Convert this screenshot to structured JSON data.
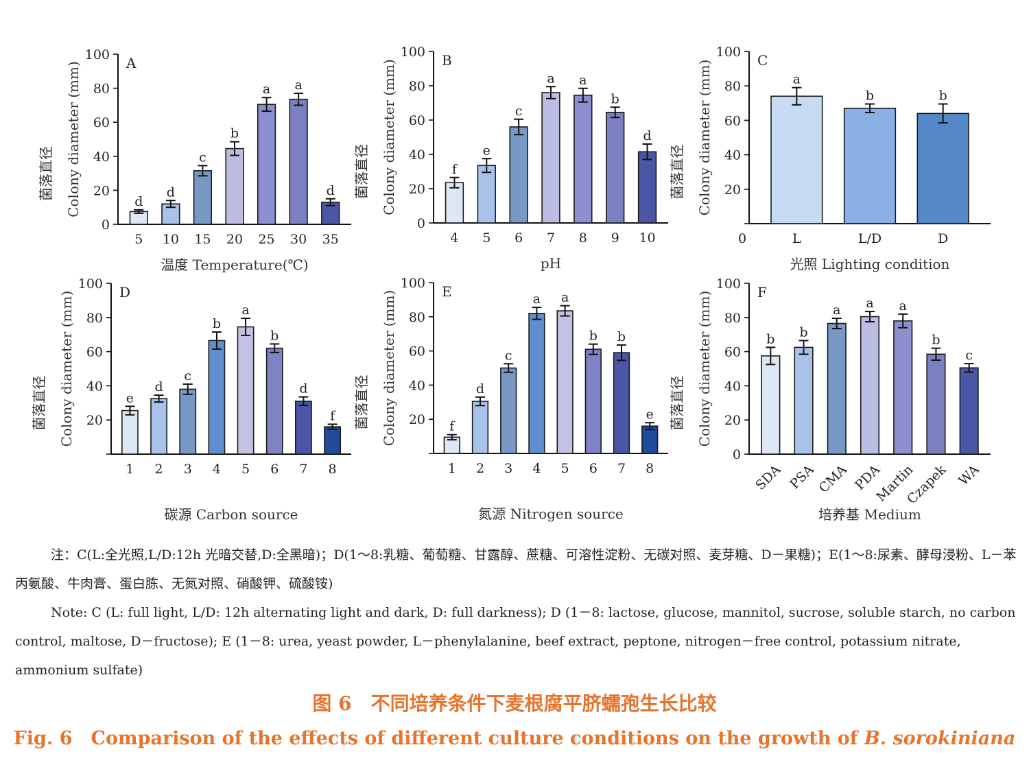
{
  "chart_data": [
    {
      "panel": "A",
      "type": "bar",
      "categories": [
        "5",
        "10",
        "15",
        "20",
        "25",
        "30",
        "35"
      ],
      "values": [
        7.5,
        12,
        31.5,
        44.5,
        70.5,
        73.5,
        13
      ],
      "errors": [
        1,
        2,
        3,
        4,
        4,
        3.5,
        2
      ],
      "letters": [
        "d",
        "d",
        "c",
        "b",
        "a",
        "a",
        "d"
      ],
      "xlabel": "温度 Temperature(℃)",
      "ylabel_zh": "菌落直径",
      "ylabel_en": "Colony diameter (mm)",
      "ylim": [
        0,
        100
      ],
      "yticks": [
        "0",
        "20",
        "40",
        "60",
        "80",
        "100"
      ],
      "x_zero_label": ""
    },
    {
      "panel": "B",
      "type": "bar",
      "categories": [
        "4",
        "5",
        "6",
        "7",
        "8",
        "9",
        "10"
      ],
      "values": [
        23.5,
        33.5,
        56,
        76,
        74.5,
        64.5,
        41.5
      ],
      "errors": [
        3,
        4,
        4.5,
        3.5,
        4,
        3,
        4.5
      ],
      "letters": [
        "f",
        "e",
        "c",
        "a",
        "a",
        "b",
        "d"
      ],
      "xlabel": "pH",
      "ylabel_zh": "菌落直径",
      "ylabel_en": "Colony diameter (mm)",
      "ylim": [
        0,
        100
      ],
      "yticks": [
        "0",
        "20",
        "40",
        "60",
        "80",
        "100"
      ],
      "x_zero_label": ""
    },
    {
      "panel": "C",
      "type": "bar",
      "categories": [
        "L",
        "L/D",
        "D"
      ],
      "values": [
        74,
        67,
        64
      ],
      "errors": [
        5,
        2.5,
        5.5
      ],
      "letters": [
        "a",
        "b",
        "b"
      ],
      "xlabel": "光照 Lighting condition",
      "ylabel_zh": "菌落直径",
      "ylabel_en": "Colony diameter (mm)",
      "ylim": [
        0,
        100
      ],
      "yticks": [
        "",
        "20",
        "40",
        "60",
        "80",
        "100"
      ],
      "x_zero_label": "0"
    },
    {
      "panel": "D",
      "type": "bar",
      "categories": [
        "1",
        "2",
        "3",
        "4",
        "5",
        "6",
        "7",
        "8"
      ],
      "values": [
        25.5,
        32.5,
        38,
        66.5,
        74.5,
        62,
        31,
        16
      ],
      "errors": [
        2.5,
        2,
        3,
        5,
        5,
        2.5,
        2.5,
        1.5
      ],
      "letters": [
        "e",
        "d",
        "c",
        "b",
        "a",
        "b",
        "d",
        "f"
      ],
      "xlabel": "碳源 Carbon source",
      "ylabel_zh": "菌落直径",
      "ylabel_en": "Colony diameter (mm)",
      "ylim": [
        0,
        100
      ],
      "yticks": [
        "",
        "20",
        "40",
        "60",
        "80",
        "100"
      ],
      "x_zero_label": ""
    },
    {
      "panel": "E",
      "type": "bar",
      "categories": [
        "1",
        "2",
        "3",
        "4",
        "5",
        "6",
        "7",
        "8"
      ],
      "values": [
        9.5,
        30.5,
        50,
        82,
        83.5,
        61,
        59,
        16
      ],
      "errors": [
        1.5,
        2.5,
        2.5,
        3.5,
        3,
        3,
        4.5,
        2
      ],
      "letters": [
        "f",
        "d",
        "c",
        "a",
        "a",
        "b",
        "b",
        "e"
      ],
      "xlabel": "氮源 Nitrogen source",
      "ylabel_zh": "菌落直径",
      "ylabel_en": "Colony diameter (mm)",
      "ylim": [
        0,
        100
      ],
      "yticks": [
        "",
        "20",
        "40",
        "60",
        "80",
        "100"
      ],
      "x_zero_label": ""
    },
    {
      "panel": "F",
      "type": "bar",
      "categories": [
        "SDA",
        "PSA",
        "CMA",
        "PDA",
        "Martin",
        "Czapek",
        "WA"
      ],
      "values": [
        57.5,
        62.5,
        76.5,
        80.5,
        78,
        58.5,
        50.5
      ],
      "errors": [
        5,
        4,
        3,
        3,
        4,
        3.5,
        2.5
      ],
      "letters": [
        "b",
        "b",
        "a",
        "a",
        "a",
        "b",
        "c"
      ],
      "xlabel": "培养基 Medium",
      "ylabel_zh": "菌落直径",
      "ylabel_en": "Colony diameter (mm)",
      "ylim": [
        0,
        100
      ],
      "yticks": [
        "0",
        "20",
        "40",
        "60",
        "80",
        "100"
      ],
      "x_zero_label": "",
      "rotated_ticks": true
    }
  ],
  "colors": {
    "seven": [
      "#dde7f6",
      "#a9c2ea",
      "#7898c6",
      "#bbbde2",
      "#8d8fcf",
      "#7c80c0",
      "#4b56a7"
    ],
    "three": [
      "#c7dcf3",
      "#8ab0e4",
      "#5589c8"
    ],
    "eight": [
      "#dde7f6",
      "#a9c2ea",
      "#7898c6",
      "#5f8fce",
      "#c2c2e2",
      "#7f83c4",
      "#4b56a7",
      "#1f4b99"
    ],
    "caption": "#e8742c",
    "error": "#111111"
  },
  "notes": {
    "zh": "注：C(L:全光照,L/D:12h 光暗交替,D:全黑暗)；D(1～8:乳糖、葡萄糖、甘露醇、蔗糖、可溶性淀粉、无碳对照、麦芽糖、D－果糖)；E(1～8:尿素、酵母浸粉、L－苯丙氨酸、牛肉膏、蛋白胨、无氮对照、硝酸钾、硫酸铵)",
    "en": "Note: C (L: full light, L/D: 12h alternating light and dark, D: full darkness); D (1－8: lactose, glucose, mannitol, sucrose, soluble starch, no carbon control, maltose, D－fructose); E (1－8: urea, yeast powder, L－phenylalanine, beef extract, peptone, nitrogen－free control, potassium nitrate, ammonium sulfate)"
  },
  "caption": {
    "zh": "图 6　不同培养条件下麦根腐平脐蠕孢生长比较",
    "en_prefix": "Fig. 6　Comparison of the effects of different culture conditions on the growth of ",
    "en_species": "B. sorokiniana"
  }
}
